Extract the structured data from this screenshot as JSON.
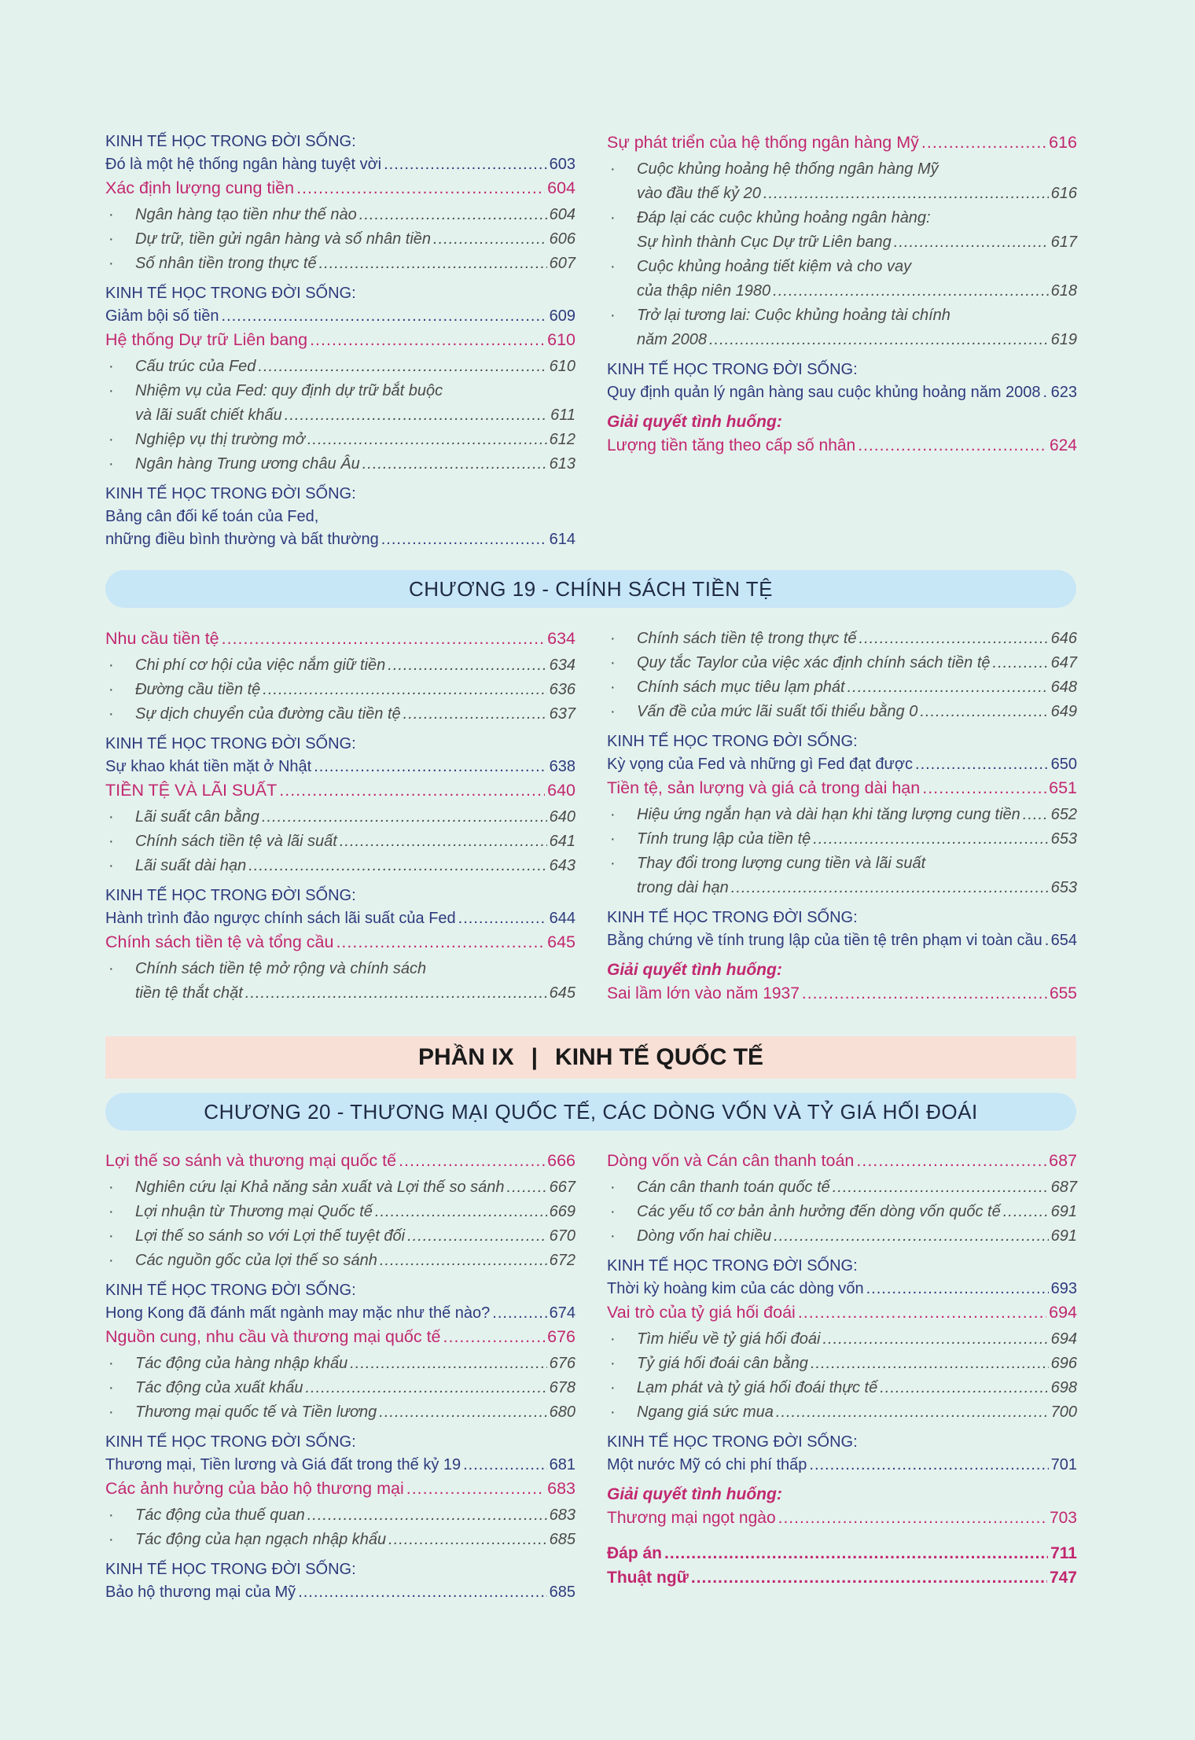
{
  "colors": {
    "background": "#e4f2ee",
    "navy": "#2d3a7c",
    "pink": "#c1286f",
    "chapter_bar": "#c7e6f6",
    "part_bar": "#f8e0d7"
  },
  "kt_label": "KINH TẾ HỌC TRONG ĐỜI SỐNG:",
  "case_label": "Giải quyết tình huống:",
  "bullet": "·",
  "chapter19": {
    "title": "CHƯƠNG 19 - CHÍNH SÁCH TIỀN TỆ"
  },
  "part9": {
    "part": "PHẦN IX",
    "separator": "|",
    "title": "KINH TẾ QUỐC TẾ"
  },
  "chapter20": {
    "title": "CHƯƠNG 20 - THƯƠNG MẠI QUỐC TẾ, CÁC DÒNG VỐN VÀ TỶ GIÁ HỐI ĐOÁI"
  },
  "columns": {
    "ch18_left": [
      {
        "type": "kt",
        "lines": [
          "Đó là một hệ thống ngân hàng tuyệt vời"
        ],
        "page": "603"
      },
      {
        "type": "main",
        "lines": [
          "Xác định lượng cung tiền"
        ],
        "page": "604"
      },
      {
        "type": "sub",
        "lines": [
          "Ngân hàng tạo tiền như thế nào"
        ],
        "page": "604"
      },
      {
        "type": "sub",
        "lines": [
          "Dự trữ, tiền gửi ngân hàng và số nhân tiền"
        ],
        "page": "606"
      },
      {
        "type": "sub",
        "lines": [
          "Số nhân tiền trong thực tế"
        ],
        "page": "607"
      },
      {
        "type": "kt",
        "lines": [
          "Giảm bội số tiền"
        ],
        "page": "609"
      },
      {
        "type": "main",
        "lines": [
          "Hệ thống Dự trữ Liên bang"
        ],
        "page": "610"
      },
      {
        "type": "sub",
        "lines": [
          "Cấu trúc của Fed"
        ],
        "page": "610"
      },
      {
        "type": "sub",
        "lines": [
          "Nhiệm vụ của Fed: quy định dự trữ bắt buộc",
          "và lãi suất chiết khấu"
        ],
        "page": "611"
      },
      {
        "type": "sub",
        "lines": [
          "Nghiệp vụ thị trường mở"
        ],
        "page": "612"
      },
      {
        "type": "sub",
        "lines": [
          "Ngân hàng Trung ương châu Âu"
        ],
        "page": "613"
      },
      {
        "type": "kt",
        "lines": [
          "Bảng cân đối kế toán của Fed,",
          "những điều bình thường và bất thường"
        ],
        "page": "614"
      }
    ],
    "ch18_right": [
      {
        "type": "main",
        "lines": [
          "Sự phát triển của hệ thống ngân hàng Mỹ"
        ],
        "page": "616"
      },
      {
        "type": "sub",
        "lines": [
          "Cuộc khủng hoảng hệ thống ngân hàng Mỹ",
          "vào đầu thế kỷ 20"
        ],
        "page": "616"
      },
      {
        "type": "sub",
        "lines": [
          "Đáp lại các cuộc khủng hoảng ngân hàng:",
          "Sự hình thành Cục Dự trữ Liên bang"
        ],
        "page": "617"
      },
      {
        "type": "sub",
        "lines": [
          "Cuộc khủng hoảng tiết kiệm và cho vay",
          "của thập niên 1980"
        ],
        "page": "618"
      },
      {
        "type": "sub",
        "lines": [
          "Trở lại tương lai: Cuộc khủng hoảng tài chính",
          "năm 2008"
        ],
        "page": "619"
      },
      {
        "type": "kt",
        "lines": [
          "Quy định quản lý ngân hàng sau cuộc khủng hoảng năm 2008"
        ],
        "page": "623"
      },
      {
        "type": "case",
        "lines": [
          "Lượng tiền tăng theo cấp số nhân"
        ],
        "page": "624"
      }
    ],
    "ch19_left": [
      {
        "type": "main",
        "lines": [
          "Nhu cầu tiền tệ"
        ],
        "page": "634"
      },
      {
        "type": "sub",
        "lines": [
          "Chi phí cơ hội của việc nắm giữ tiền"
        ],
        "page": "634"
      },
      {
        "type": "sub",
        "lines": [
          "Đường cầu tiền tệ"
        ],
        "page": "636"
      },
      {
        "type": "sub",
        "lines": [
          "Sự dịch chuyển của đường cầu tiền tệ"
        ],
        "page": "637"
      },
      {
        "type": "kt",
        "lines": [
          "Sự khao khát tiền mặt ở Nhật"
        ],
        "page": "638"
      },
      {
        "type": "main",
        "lines": [
          "TIỀN TỆ VÀ LÃI SUẤT"
        ],
        "page": "640"
      },
      {
        "type": "sub",
        "lines": [
          "Lãi suất cân bằng"
        ],
        "page": "640"
      },
      {
        "type": "sub",
        "lines": [
          "Chính sách tiền tệ và lãi suất"
        ],
        "page": "641"
      },
      {
        "type": "sub",
        "lines": [
          "Lãi suất dài hạn"
        ],
        "page": "643"
      },
      {
        "type": "kt",
        "lines": [
          "Hành trình đảo ngược chính sách lãi suất của Fed"
        ],
        "page": "644"
      },
      {
        "type": "main",
        "lines": [
          "Chính sách tiền tệ và tổng cầu"
        ],
        "page": "645"
      },
      {
        "type": "sub",
        "lines": [
          "Chính sách tiền tệ mở rộng và chính sách",
          "tiền tệ thắt chặt"
        ],
        "page": "645"
      }
    ],
    "ch19_right": [
      {
        "type": "sub",
        "lines": [
          "Chính sách tiền tệ trong thực tế"
        ],
        "page": "646"
      },
      {
        "type": "sub",
        "lines": [
          "Quy tắc Taylor của việc xác định chính sách tiền tệ"
        ],
        "page": "647"
      },
      {
        "type": "sub",
        "lines": [
          "Chính sách mục tiêu lạm phát"
        ],
        "page": "648"
      },
      {
        "type": "sub",
        "lines": [
          "Vấn đề của mức lãi suất tối thiểu bằng 0"
        ],
        "page": "649"
      },
      {
        "type": "kt",
        "lines": [
          "Kỳ vọng của Fed và những gì Fed đạt được"
        ],
        "page": "650"
      },
      {
        "type": "main",
        "lines": [
          "Tiền tệ, sản lượng và giá cả trong dài hạn"
        ],
        "page": "651"
      },
      {
        "type": "sub",
        "lines": [
          "Hiệu ứng ngắn hạn và dài hạn khi tăng lượng cung tiền"
        ],
        "page": "652"
      },
      {
        "type": "sub",
        "lines": [
          "Tính trung lập của tiền tệ"
        ],
        "page": "653"
      },
      {
        "type": "sub",
        "lines": [
          "Thay đổi trong lượng cung tiền và lãi suất",
          "trong dài hạn"
        ],
        "page": "653"
      },
      {
        "type": "kt",
        "lines": [
          "Bằng chứng về tính trung lập của tiền tệ trên phạm vi toàn cầu"
        ],
        "page": "654"
      },
      {
        "type": "case",
        "lines": [
          "Sai lầm lớn vào năm 1937"
        ],
        "page": "655"
      }
    ],
    "ch20_left": [
      {
        "type": "main",
        "lines": [
          "Lợi thế so sánh và thương mại quốc tế"
        ],
        "page": "666"
      },
      {
        "type": "sub",
        "lines": [
          "Nghiên cứu lại Khả năng sản xuất và Lợi thế so sánh"
        ],
        "page": "667"
      },
      {
        "type": "sub",
        "lines": [
          "Lợi nhuận từ Thương mại Quốc tế"
        ],
        "page": "669"
      },
      {
        "type": "sub",
        "lines": [
          "Lợi thế so sánh so với Lợi thế tuyệt đối"
        ],
        "page": "670"
      },
      {
        "type": "sub",
        "lines": [
          "Các nguồn gốc của lợi thế so sánh"
        ],
        "page": "672"
      },
      {
        "type": "kt",
        "lines": [
          "Hong Kong đã đánh mất ngành may mặc như thế nào?"
        ],
        "page": "674"
      },
      {
        "type": "main",
        "lines": [
          "Nguồn cung, nhu cầu và thương mại quốc tế"
        ],
        "page": "676"
      },
      {
        "type": "sub",
        "lines": [
          "Tác động của hàng nhập khẩu"
        ],
        "page": "676"
      },
      {
        "type": "sub",
        "lines": [
          "Tác động của xuất khẩu"
        ],
        "page": "678"
      },
      {
        "type": "sub",
        "lines": [
          "Thương mại quốc tế và Tiền lương"
        ],
        "page": "680"
      },
      {
        "type": "kt",
        "lines": [
          "Thương mại, Tiền lương và Giá đất trong thế kỷ 19"
        ],
        "page": "681"
      },
      {
        "type": "main",
        "lines": [
          "Các ảnh hưởng của bảo hộ thương mại"
        ],
        "page": "683"
      },
      {
        "type": "sub",
        "lines": [
          "Tác động của thuế quan"
        ],
        "page": "683"
      },
      {
        "type": "sub",
        "lines": [
          "Tác động của hạn ngạch nhập khẩu"
        ],
        "page": "685"
      },
      {
        "type": "kt",
        "lines": [
          "Bảo hộ thương mại của Mỹ"
        ],
        "page": "685"
      }
    ],
    "ch20_right": [
      {
        "type": "main",
        "lines": [
          "Dòng vốn và Cán cân thanh toán"
        ],
        "page": "687"
      },
      {
        "type": "sub",
        "lines": [
          "Cán cân thanh toán quốc tế"
        ],
        "page": "687"
      },
      {
        "type": "sub",
        "lines": [
          "Các yếu tố cơ bản ảnh hưởng đến dòng vốn quốc tế"
        ],
        "page": "691"
      },
      {
        "type": "sub",
        "lines": [
          "Dòng vốn hai chiều"
        ],
        "page": "691"
      },
      {
        "type": "kt",
        "lines": [
          "Thời kỳ hoàng kim của các dòng vốn"
        ],
        "page": "693"
      },
      {
        "type": "main",
        "lines": [
          "Vai trò của tỷ giá hối đoái"
        ],
        "page": "694"
      },
      {
        "type": "sub",
        "lines": [
          "Tìm hiểu về tỷ giá hối đoái"
        ],
        "page": "694"
      },
      {
        "type": "sub",
        "lines": [
          "Tỷ giá hối đoái cân bằng"
        ],
        "page": "696"
      },
      {
        "type": "sub",
        "lines": [
          "Lạm phát và tỷ giá hối đoái thực tế"
        ],
        "page": "698"
      },
      {
        "type": "sub",
        "lines": [
          "Ngang giá sức mua"
        ],
        "page": "700"
      },
      {
        "type": "kt",
        "lines": [
          "Một nước Mỹ có chi phí thấp"
        ],
        "page": "701"
      },
      {
        "type": "case",
        "lines": [
          "Thương mại ngọt ngào"
        ],
        "page": "703"
      },
      {
        "type": "bold",
        "lines": [
          "Đáp án"
        ],
        "page": "711"
      },
      {
        "type": "bold",
        "lines": [
          "Thuật ngữ"
        ],
        "page": "747"
      }
    ]
  }
}
